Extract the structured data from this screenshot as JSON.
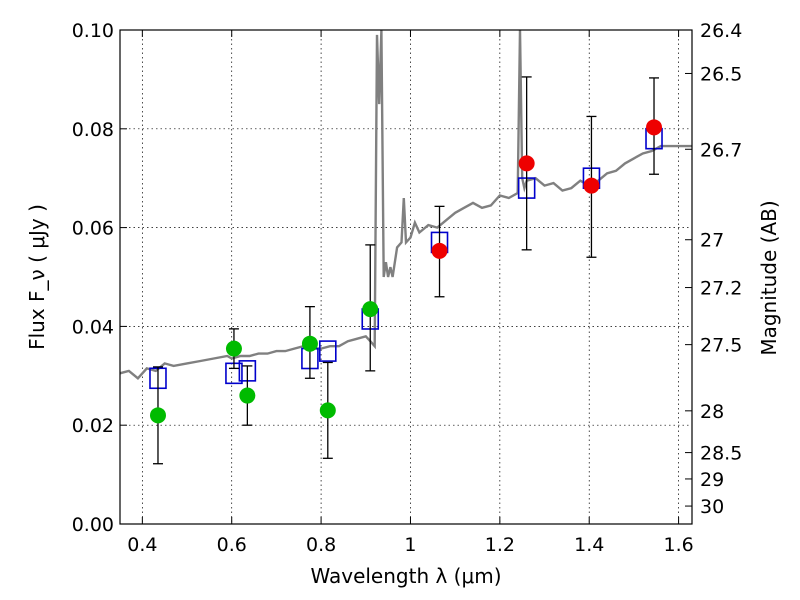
{
  "chart_data": {
    "type": "scatter",
    "xlabel": "Wavelength λ (μm)",
    "ylabel": "Flux F_ν ( μJy )",
    "y2label": "Magnitude (AB)",
    "xlim": [
      0.35,
      1.63
    ],
    "ylim": [
      0.0,
      0.1
    ],
    "x_ticks": [
      0.4,
      0.6,
      0.8,
      1.0,
      1.2,
      1.4,
      1.6
    ],
    "x_tick_labels": [
      "0.4",
      "0.6",
      "0.8",
      "1",
      "1.2",
      "1.4",
      "1.6"
    ],
    "y_ticks": [
      0.0,
      0.02,
      0.04,
      0.06,
      0.08,
      0.1
    ],
    "y_tick_labels": [
      "0.00",
      "0.02",
      "0.04",
      "0.06",
      "0.08",
      "0.10"
    ],
    "y2_tick_labels": [
      "26.4",
      "26.5",
      "26.7",
      "27",
      "27.2",
      "27.5",
      "28",
      "28.5",
      "29",
      "30"
    ],
    "grid": true,
    "colors": {
      "template": "#808080",
      "model_box": "#0000cc",
      "green_point": "#00bb00",
      "red_point": "#ee0000",
      "errorbar": "#000000"
    },
    "series": [
      {
        "type": "line",
        "x": [
          0.35,
          0.37,
          0.39,
          0.41,
          0.43,
          0.45,
          0.47,
          0.5,
          0.53,
          0.56,
          0.59,
          0.6,
          0.62,
          0.64,
          0.66,
          0.68,
          0.7,
          0.72,
          0.74,
          0.76,
          0.78,
          0.8,
          0.82,
          0.84,
          0.86,
          0.88,
          0.9,
          0.91,
          0.92,
          0.925,
          0.93,
          0.935,
          0.94,
          0.945,
          0.95,
          0.955,
          0.96,
          0.97,
          0.98,
          0.985,
          0.99,
          1.0,
          1.01,
          1.02,
          1.04,
          1.06,
          1.08,
          1.1,
          1.12,
          1.14,
          1.16,
          1.18,
          1.2,
          1.22,
          1.24,
          1.245,
          1.25,
          1.255,
          1.26,
          1.28,
          1.3,
          1.32,
          1.34,
          1.36,
          1.38,
          1.4,
          1.42,
          1.44,
          1.46,
          1.48,
          1.5,
          1.52,
          1.54,
          1.56,
          1.58,
          1.6,
          1.63
        ],
        "y": [
          0.0305,
          0.031,
          0.0295,
          0.0315,
          0.031,
          0.0325,
          0.032,
          0.0325,
          0.033,
          0.0335,
          0.034,
          0.0335,
          0.034,
          0.034,
          0.0345,
          0.0345,
          0.035,
          0.035,
          0.0355,
          0.036,
          0.0355,
          0.0355,
          0.036,
          0.036,
          0.037,
          0.0375,
          0.038,
          0.037,
          0.036,
          0.099,
          0.085,
          0.1,
          0.05,
          0.053,
          0.05,
          0.052,
          0.05,
          0.056,
          0.057,
          0.066,
          0.057,
          0.058,
          0.061,
          0.059,
          0.0605,
          0.06,
          0.0615,
          0.063,
          0.064,
          0.065,
          0.064,
          0.0645,
          0.0665,
          0.066,
          0.067,
          0.1,
          0.07,
          0.068,
          0.0695,
          0.07,
          0.0685,
          0.069,
          0.0675,
          0.068,
          0.0695,
          0.0685,
          0.0695,
          0.071,
          0.0715,
          0.073,
          0.074,
          0.075,
          0.0755,
          0.0765,
          0.0765,
          0.0765,
          0.0765
        ]
      },
      {
        "type": "markers-square",
        "x": [
          0.435,
          0.605,
          0.635,
          0.775,
          0.815,
          0.91,
          1.065,
          1.26,
          1.405,
          1.545
        ],
        "y": [
          0.0295,
          0.0305,
          0.031,
          0.0335,
          0.035,
          0.0415,
          0.057,
          0.068,
          0.07,
          0.078
        ]
      },
      {
        "type": "markers-circle-green",
        "x": [
          0.435,
          0.605,
          0.635,
          0.775,
          0.815,
          0.91
        ],
        "y": [
          0.022,
          0.0355,
          0.026,
          0.0365,
          0.023,
          0.0435
        ],
        "err_low": [
          0.0098,
          0.004,
          0.006,
          0.007,
          0.0097,
          0.0125
        ],
        "err_high": [
          0.0098,
          0.004,
          0.006,
          0.0075,
          0.0097,
          0.013
        ]
      },
      {
        "type": "markers-circle-red",
        "x": [
          1.065,
          1.26,
          1.405,
          1.545
        ],
        "y": [
          0.0553,
          0.073,
          0.0685,
          0.0803
        ],
        "err_low": [
          0.0093,
          0.0175,
          0.0145,
          0.0095
        ],
        "err_high": [
          0.009,
          0.0175,
          0.014,
          0.01
        ]
      }
    ]
  }
}
